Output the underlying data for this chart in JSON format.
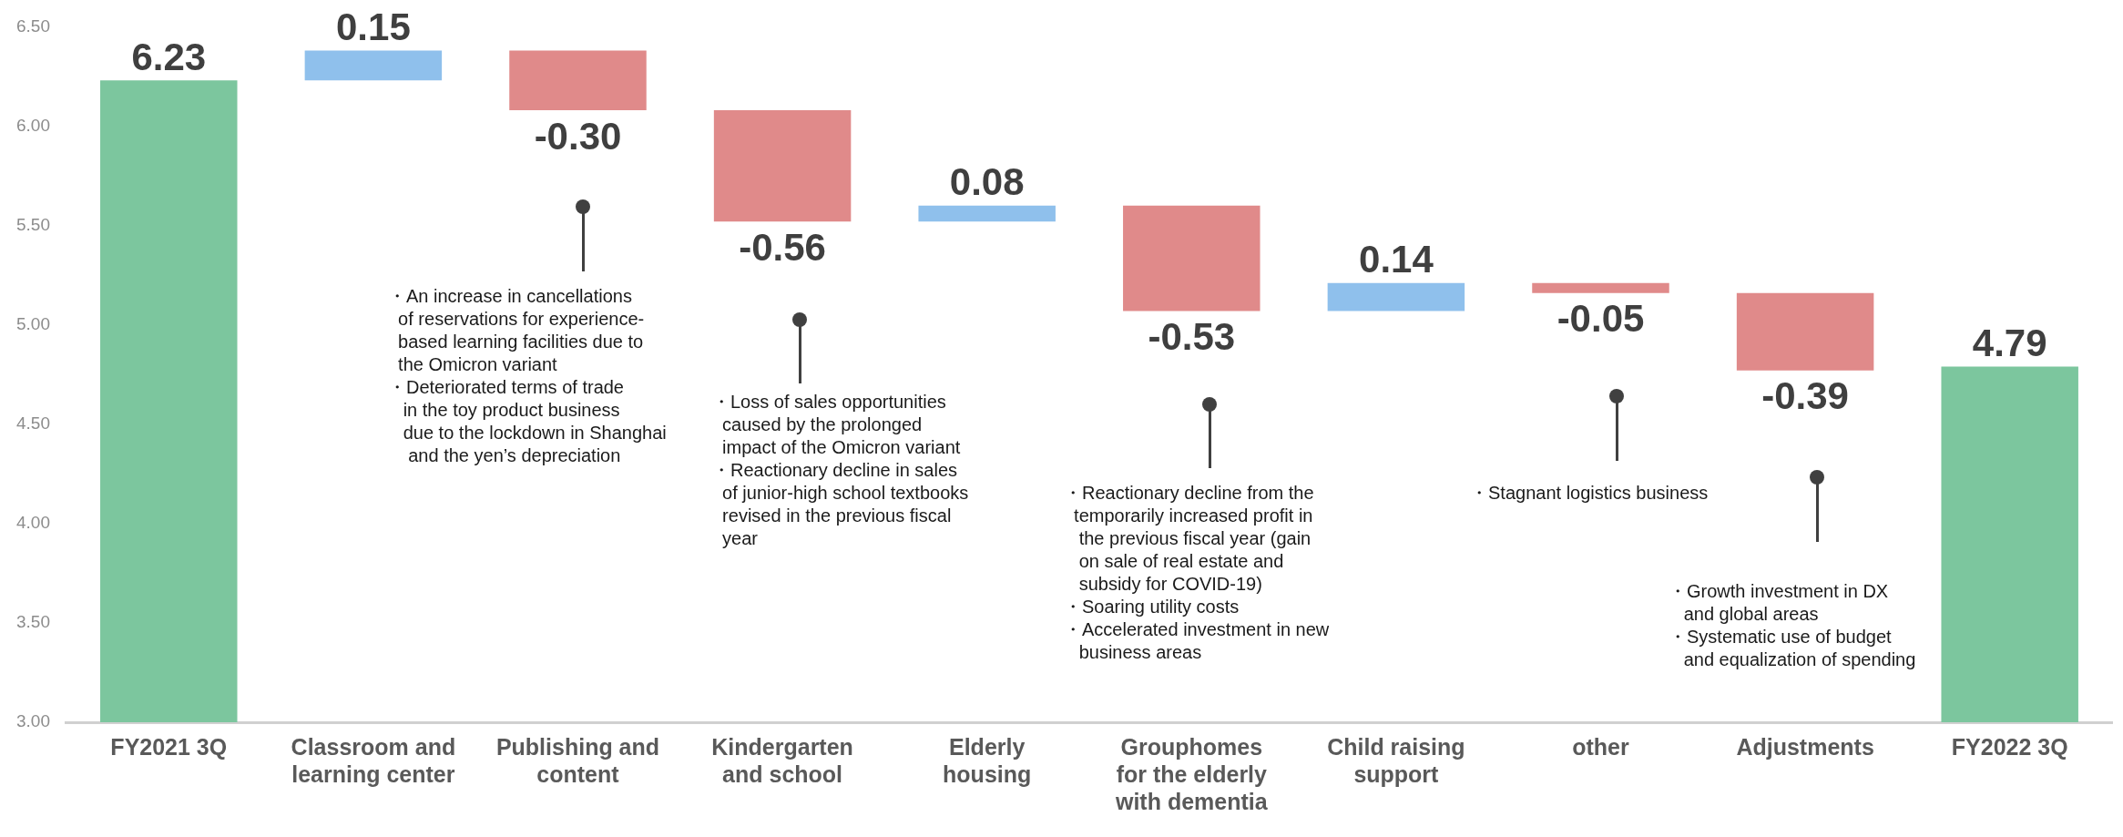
{
  "chart_data": {
    "type": "bar",
    "categories": [
      "FY2021 3Q",
      "Classroom and learning center",
      "Publishing and content",
      "Kindergarten and school",
      "Elderly housing",
      "Grouphomes for the elderly with dementia",
      "Child raising support",
      "other",
      "Adjustments",
      "FY2022 3Q"
    ],
    "values": [
      6.23,
      0.15,
      -0.3,
      -0.56,
      0.08,
      -0.53,
      0.14,
      -0.05,
      -0.39,
      4.79
    ],
    "base": [
      null,
      6.23,
      6.38,
      6.08,
      5.52,
      5.6,
      5.07,
      5.21,
      5.16,
      null
    ],
    "value_labels": [
      "6.23",
      "0.15",
      "-0.30",
      "-0.56",
      "0.08",
      "-0.53",
      "0.14",
      "-0.05",
      "-0.39",
      "4.79"
    ],
    "colors": [
      "#7cc69e",
      "#8fc0ec",
      "#e08a8a",
      "#e08a8a",
      "#8fc0ec",
      "#e08a8a",
      "#8fc0ec",
      "#e08a8a",
      "#e08a8a",
      "#7cc69e"
    ],
    "ylim": [
      3,
      6.5
    ],
    "yticks": [
      {
        "value": 3,
        "label": "3.00"
      },
      {
        "value": 3.5,
        "label": "3.50"
      },
      {
        "value": 4,
        "label": "4.00"
      },
      {
        "value": 4.5,
        "label": "4.50"
      },
      {
        "value": 5,
        "label": "5.00"
      },
      {
        "value": 5.5,
        "label": "5.50"
      },
      {
        "value": 6,
        "label": "6.00"
      },
      {
        "value": 6.5,
        "label": "6.50"
      }
    ],
    "grid": false,
    "legend": false,
    "annotations": [
      "・An increase in cancellations\n  of reservations for experience-\n  based learning facilities due to\n  the Omicron variant\n・Deteriorated terms of trade\n   in the toy product business\n   due to the lockdown in Shanghai\n    and the yen’s depreciation",
      "・Loss of sales opportunities\n  caused by the prolonged\n  impact of the Omicron variant\n・Reactionary decline in sales\n  of junior-high school textbooks\n  revised in the previous fiscal\n  year",
      "・Reactionary decline from the\n  temporarily increased profit in\n   the previous fiscal year (gain\n   on sale of real estate and\n   subsidy for COVID-19)\n・Soaring utility costs\n・Accelerated investment in new\n   business areas",
      "・Stagnant logistics business",
      "・Growth investment in DX\n   and global areas\n・Systematic use of budget\n   and equalization of spending"
    ]
  }
}
